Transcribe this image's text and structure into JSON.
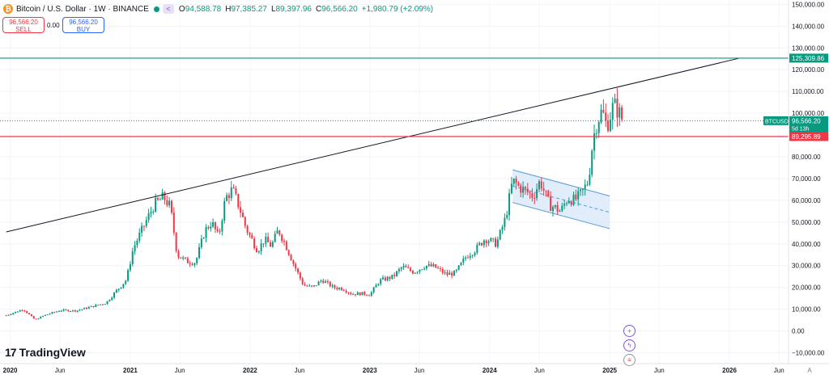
{
  "header": {
    "coin_glyph": "₿",
    "symbol_title": "Bitcoin / U.S. Dollar · 1W · BINANCE",
    "open_label": "O",
    "open_value": "94,588.78",
    "high_label": "H",
    "high_value": "97,385.27",
    "low_label": "L",
    "low_value": "89,397.96",
    "close_label": "C",
    "close_value": "96,566.20",
    "change": "+1,980.79 (+2.09%)",
    "up_color": "#089981",
    "down_color": "#f23645"
  },
  "trade": {
    "sell_price": "96,566.20",
    "sell_label": "SELL",
    "spread": "0.00",
    "buy_price": "96,566.20",
    "buy_label": "BUY"
  },
  "branding": {
    "logo_text": "TradingView",
    "logo_mark": "17"
  },
  "side_icons": [
    "plus-icon",
    "lightning-icon",
    "us-flag-icon"
  ],
  "chart_data": {
    "type": "candlestick",
    "symbol": "BTCUSD",
    "y_range": [
      -15000,
      152000
    ],
    "y_ticks": [
      150000,
      140000,
      130000,
      120000,
      110000,
      100000,
      90000,
      80000,
      70000,
      60000,
      50000,
      40000,
      30000,
      20000,
      10000,
      0,
      -10000
    ],
    "y_tick_labels": [
      "150,000.00",
      "140,000.00",
      "130,000.00",
      "120,000.00",
      "110,000.00",
      "100,000.00",
      "90,000.00",
      "80,000.00",
      "70,000.00",
      "60,000.00",
      "50,000.00",
      "40,000.00",
      "30,000.00",
      "20,000.00",
      "10,000.00",
      "0.00",
      "−10,000.00"
    ],
    "x_range": [
      "2019-12-01",
      "2026-06-30"
    ],
    "x_ticks": [
      {
        "date": "2020-01-01",
        "label": "2020"
      },
      {
        "date": "2020-06-01",
        "label": "Jun"
      },
      {
        "date": "2021-01-01",
        "label": "2021"
      },
      {
        "date": "2021-06-01",
        "label": "Jun"
      },
      {
        "date": "2022-01-01",
        "label": "2022"
      },
      {
        "date": "2022-06-01",
        "label": "Jun"
      },
      {
        "date": "2023-01-01",
        "label": "2023"
      },
      {
        "date": "2023-06-01",
        "label": "Jun"
      },
      {
        "date": "2024-01-01",
        "label": "2024"
      },
      {
        "date": "2024-06-01",
        "label": "Jun"
      },
      {
        "date": "2025-01-01",
        "label": "2025"
      },
      {
        "date": "2025-06-01",
        "label": "Jun"
      },
      {
        "date": "2026-01-01",
        "label": "2026"
      },
      {
        "date": "2026-06-01",
        "label": "Jun"
      }
    ],
    "close_path": [
      [
        "2019-12-20",
        7200
      ],
      [
        "2020-02-10",
        10000
      ],
      [
        "2020-03-16",
        5200
      ],
      [
        "2020-04-20",
        7500
      ],
      [
        "2020-06-01",
        9500
      ],
      [
        "2020-07-20",
        9300
      ],
      [
        "2020-09-01",
        11000
      ],
      [
        "2020-10-20",
        13000
      ],
      [
        "2020-11-20",
        18500
      ],
      [
        "2020-12-20",
        23500
      ],
      [
        "2021-01-10",
        38000
      ],
      [
        "2021-02-20",
        51000
      ],
      [
        "2021-03-15",
        58000
      ],
      [
        "2021-04-12",
        61500
      ],
      [
        "2021-05-03",
        57000
      ],
      [
        "2021-05-24",
        35000
      ],
      [
        "2021-06-21",
        32000
      ],
      [
        "2021-07-19",
        31500
      ],
      [
        "2021-08-16",
        46000
      ],
      [
        "2021-09-06",
        50000
      ],
      [
        "2021-09-27",
        43000
      ],
      [
        "2021-10-18",
        61000
      ],
      [
        "2021-11-08",
        65000
      ],
      [
        "2021-11-29",
        57000
      ],
      [
        "2021-12-20",
        47000
      ],
      [
        "2022-01-24",
        37000
      ],
      [
        "2022-02-14",
        42000
      ],
      [
        "2022-03-07",
        39000
      ],
      [
        "2022-03-28",
        46500
      ],
      [
        "2022-04-18",
        40000
      ],
      [
        "2022-05-16",
        30000
      ],
      [
        "2022-06-13",
        21000
      ],
      [
        "2022-07-11",
        20000
      ],
      [
        "2022-08-08",
        23500
      ],
      [
        "2022-09-12",
        20000
      ],
      [
        "2022-10-10",
        19500
      ],
      [
        "2022-11-07",
        17000
      ],
      [
        "2022-12-05",
        17200
      ],
      [
        "2023-01-02",
        16800
      ],
      [
        "2023-01-30",
        23000
      ],
      [
        "2023-03-13",
        25000
      ],
      [
        "2023-04-10",
        29500
      ],
      [
        "2023-05-15",
        27000
      ],
      [
        "2023-06-19",
        30000
      ],
      [
        "2023-07-17",
        29500
      ],
      [
        "2023-08-21",
        26000
      ],
      [
        "2023-09-18",
        26500
      ],
      [
        "2023-10-23",
        34500
      ],
      [
        "2023-11-20",
        37500
      ],
      [
        "2023-12-18",
        42500
      ],
      [
        "2024-01-22",
        40000
      ],
      [
        "2024-02-19",
        52000
      ],
      [
        "2024-03-11",
        69000
      ],
      [
        "2024-04-01",
        66000
      ],
      [
        "2024-04-22",
        64000
      ],
      [
        "2024-05-13",
        62000
      ],
      [
        "2024-06-03",
        69000
      ],
      [
        "2024-07-01",
        58000
      ],
      [
        "2024-08-05",
        55000
      ],
      [
        "2024-08-26",
        61000
      ],
      [
        "2024-09-16",
        60000
      ],
      [
        "2024-10-07",
        63000
      ],
      [
        "2024-10-28",
        69000
      ],
      [
        "2024-11-11",
        88000
      ],
      [
        "2024-11-25",
        97000
      ],
      [
        "2024-12-09",
        101000
      ],
      [
        "2024-12-23",
        94000
      ],
      [
        "2025-01-13",
        104000
      ],
      [
        "2025-01-27",
        101000
      ],
      [
        "2025-02-10",
        96566
      ]
    ],
    "trendline": [
      [
        "2019-12-20",
        45500
      ],
      [
        "2026-02-01",
        125300
      ]
    ],
    "horizontal_levels": [
      {
        "price": 125309.86,
        "label": "125,309.86",
        "color": "#089981"
      },
      {
        "price": 89295.89,
        "label": "89,295.89",
        "color": "#f23645"
      }
    ],
    "current_price": {
      "price": 96566.2,
      "label": "96,566.20",
      "symbol": "BTCUSD",
      "countdown": "5d 13h",
      "color": "#089981"
    },
    "channel": {
      "upper": [
        [
          "2024-03-11",
          74000
        ],
        [
          "2025-01-01",
          62000
        ]
      ],
      "lower": [
        [
          "2024-03-11",
          59000
        ],
        [
          "2025-01-01",
          47000
        ]
      ],
      "fill": "#d4e6f8",
      "stroke": "#5b9bd5"
    }
  }
}
